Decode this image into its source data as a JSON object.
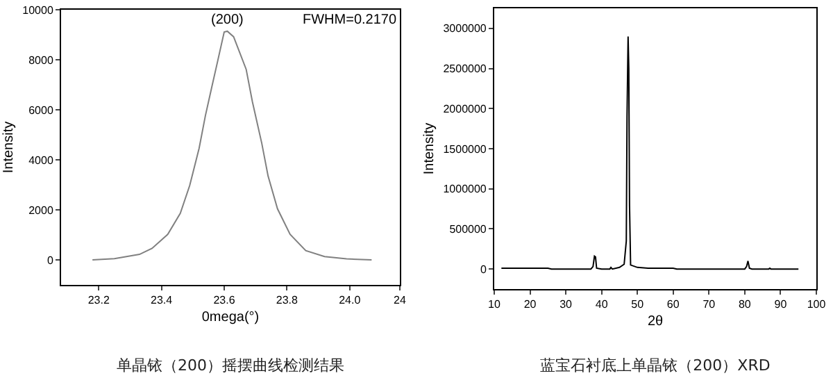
{
  "chart_data": [
    {
      "type": "line",
      "title": "单晶铱（200）摇摆曲线检测结果",
      "xlabel": "0mega(°)",
      "ylabel": "Intensity",
      "xlim": [
        23.08,
        24.16
      ],
      "xticks": [
        23.2,
        23.4,
        23.6,
        23.8,
        {
          "value": 24.0,
          "label": "24.0"
        },
        {
          "value": 24.16,
          "label": "24"
        }
      ],
      "ylim": [
        -1000,
        10000
      ],
      "yticks": [
        0,
        2000,
        4000,
        6000,
        8000,
        10000
      ],
      "grid": false,
      "annotations": [
        "(200)",
        "FWHM=0.2170"
      ],
      "series": [
        {
          "color": "#808080",
          "x": [
            23.18,
            23.25,
            23.33,
            23.37,
            23.42,
            23.46,
            23.49,
            23.52,
            23.54,
            23.56,
            23.58,
            23.6,
            23.61,
            23.63,
            23.67,
            23.69,
            23.72,
            23.74,
            23.77,
            23.81,
            23.86,
            23.92,
            23.99,
            24.07
          ],
          "values": [
            0,
            50,
            220,
            460,
            1020,
            1860,
            2970,
            4460,
            5760,
            6880,
            7990,
            9110,
            9140,
            8920,
            7620,
            6320,
            4650,
            3350,
            2040,
            1020,
            370,
            130,
            40,
            0
          ]
        }
      ]
    },
    {
      "type": "line",
      "title": "蓝宝石衬底上单晶铱（200）XRD",
      "xlabel": "2θ",
      "ylabel": "Intensity",
      "xlim": [
        10,
        100
      ],
      "xticks": [
        10,
        20,
        30,
        40,
        50,
        60,
        70,
        80,
        90,
        100
      ],
      "ylim": [
        -250000,
        3250000
      ],
      "yticks": [
        0,
        500000,
        1000000,
        1500000,
        2000000,
        2500000,
        3000000
      ],
      "grid": false,
      "series": [
        {
          "color": "#000000",
          "x": [
            12,
            25,
            26,
            37,
            37.6,
            38,
            38.3,
            38.6,
            40,
            42.3,
            42.6,
            43,
            45,
            46.3,
            46.9,
            47.1,
            47.4,
            47.6,
            47.8,
            48.1,
            50,
            53,
            60,
            61,
            80,
            80.5,
            80.9,
            81.3,
            82,
            86.7,
            87,
            87.3,
            95
          ],
          "values": [
            10000,
            10000,
            0,
            0,
            30000,
            160000,
            150000,
            10000,
            0,
            0,
            20000,
            0,
            20000,
            60000,
            350000,
            1900000,
            2900000,
            2500000,
            800000,
            50000,
            20000,
            10000,
            10000,
            0,
            0,
            30000,
            100000,
            10000,
            0,
            0,
            10000,
            0,
            0
          ]
        }
      ]
    }
  ]
}
